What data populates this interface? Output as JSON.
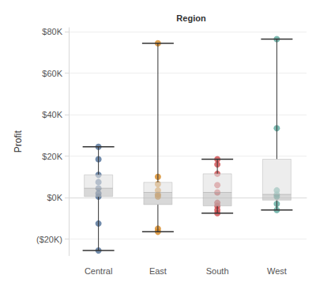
{
  "chart_data": {
    "type": "boxplot",
    "x_label": "Region",
    "y_label": "Profit",
    "categories": [
      "Central",
      "East",
      "South",
      "West"
    ],
    "colors": [
      "#4e6e96",
      "#d4841e",
      "#cf4a4c",
      "#5aa89c"
    ],
    "values": [
      [
        24500,
        18500,
        11000,
        7500,
        4500,
        2000,
        500,
        -12500,
        -25500
      ],
      [
        74500,
        10000,
        6500,
        3500,
        1500,
        500,
        -15000,
        -16500
      ],
      [
        18500,
        16000,
        11500,
        6000,
        2500,
        -2500,
        -4000,
        -6000,
        -7500
      ],
      [
        76500,
        33500,
        3500,
        1500,
        500,
        -3000,
        -6000
      ]
    ],
    "ylim": [
      -28000,
      82000
    ],
    "yticks": [
      {
        "value": -20000,
        "label": "($20K)"
      },
      {
        "value": 0,
        "label": "$0K"
      },
      {
        "value": 20000,
        "label": "$20K"
      },
      {
        "value": 40000,
        "label": "$40K"
      },
      {
        "value": 60000,
        "label": "$60K"
      },
      {
        "value": 80000,
        "label": "$80K"
      }
    ],
    "grid": true
  }
}
